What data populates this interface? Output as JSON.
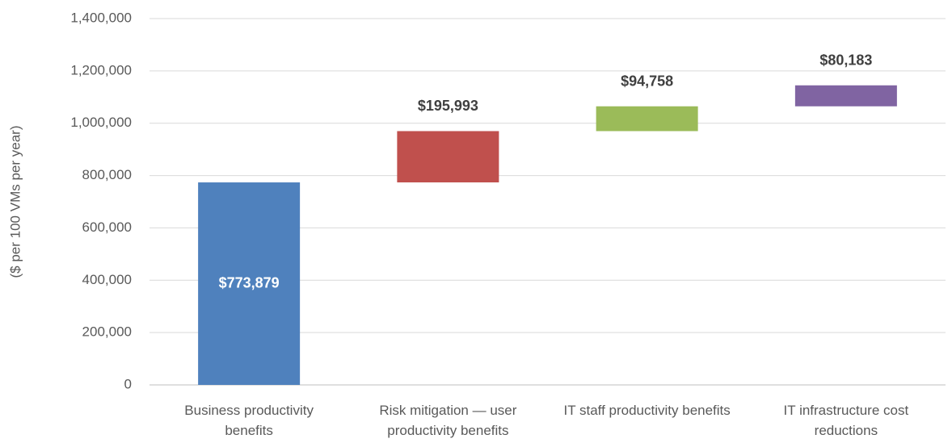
{
  "chart_data": {
    "type": "waterfall",
    "y_label": "($ per 100 VMs per year)",
    "categories": [
      "Business productivity benefits",
      "Risk mitigation — user productivity benefits",
      "IT staff productivity benefits",
      "IT infrastructure cost reductions"
    ],
    "series": [
      {
        "name": null,
        "values": [
          773879,
          195993,
          94758,
          80183
        ],
        "value_labels": [
          "$773,879",
          "$195,993",
          "$94,758",
          "$80,183"
        ],
        "colors": [
          "#4f81bd",
          "#c0504d",
          "#9bbb59",
          "#8064a2"
        ]
      }
    ],
    "ylim": [
      0,
      1400000
    ],
    "yticks": [
      0,
      {
        "value": 200000,
        "label": "200,000"
      },
      {
        "value": 400000,
        "label": "400,000"
      },
      {
        "value": 600000,
        "label": "600,000"
      },
      {
        "value": 800000,
        "label": "800,000"
      },
      {
        "value": 1000000,
        "label": "1,000,000"
      },
      {
        "value": 1200000,
        "label": "1,200,000"
      },
      {
        "value": 1400000,
        "label": "1,400,000"
      }
    ],
    "grid": true
  }
}
